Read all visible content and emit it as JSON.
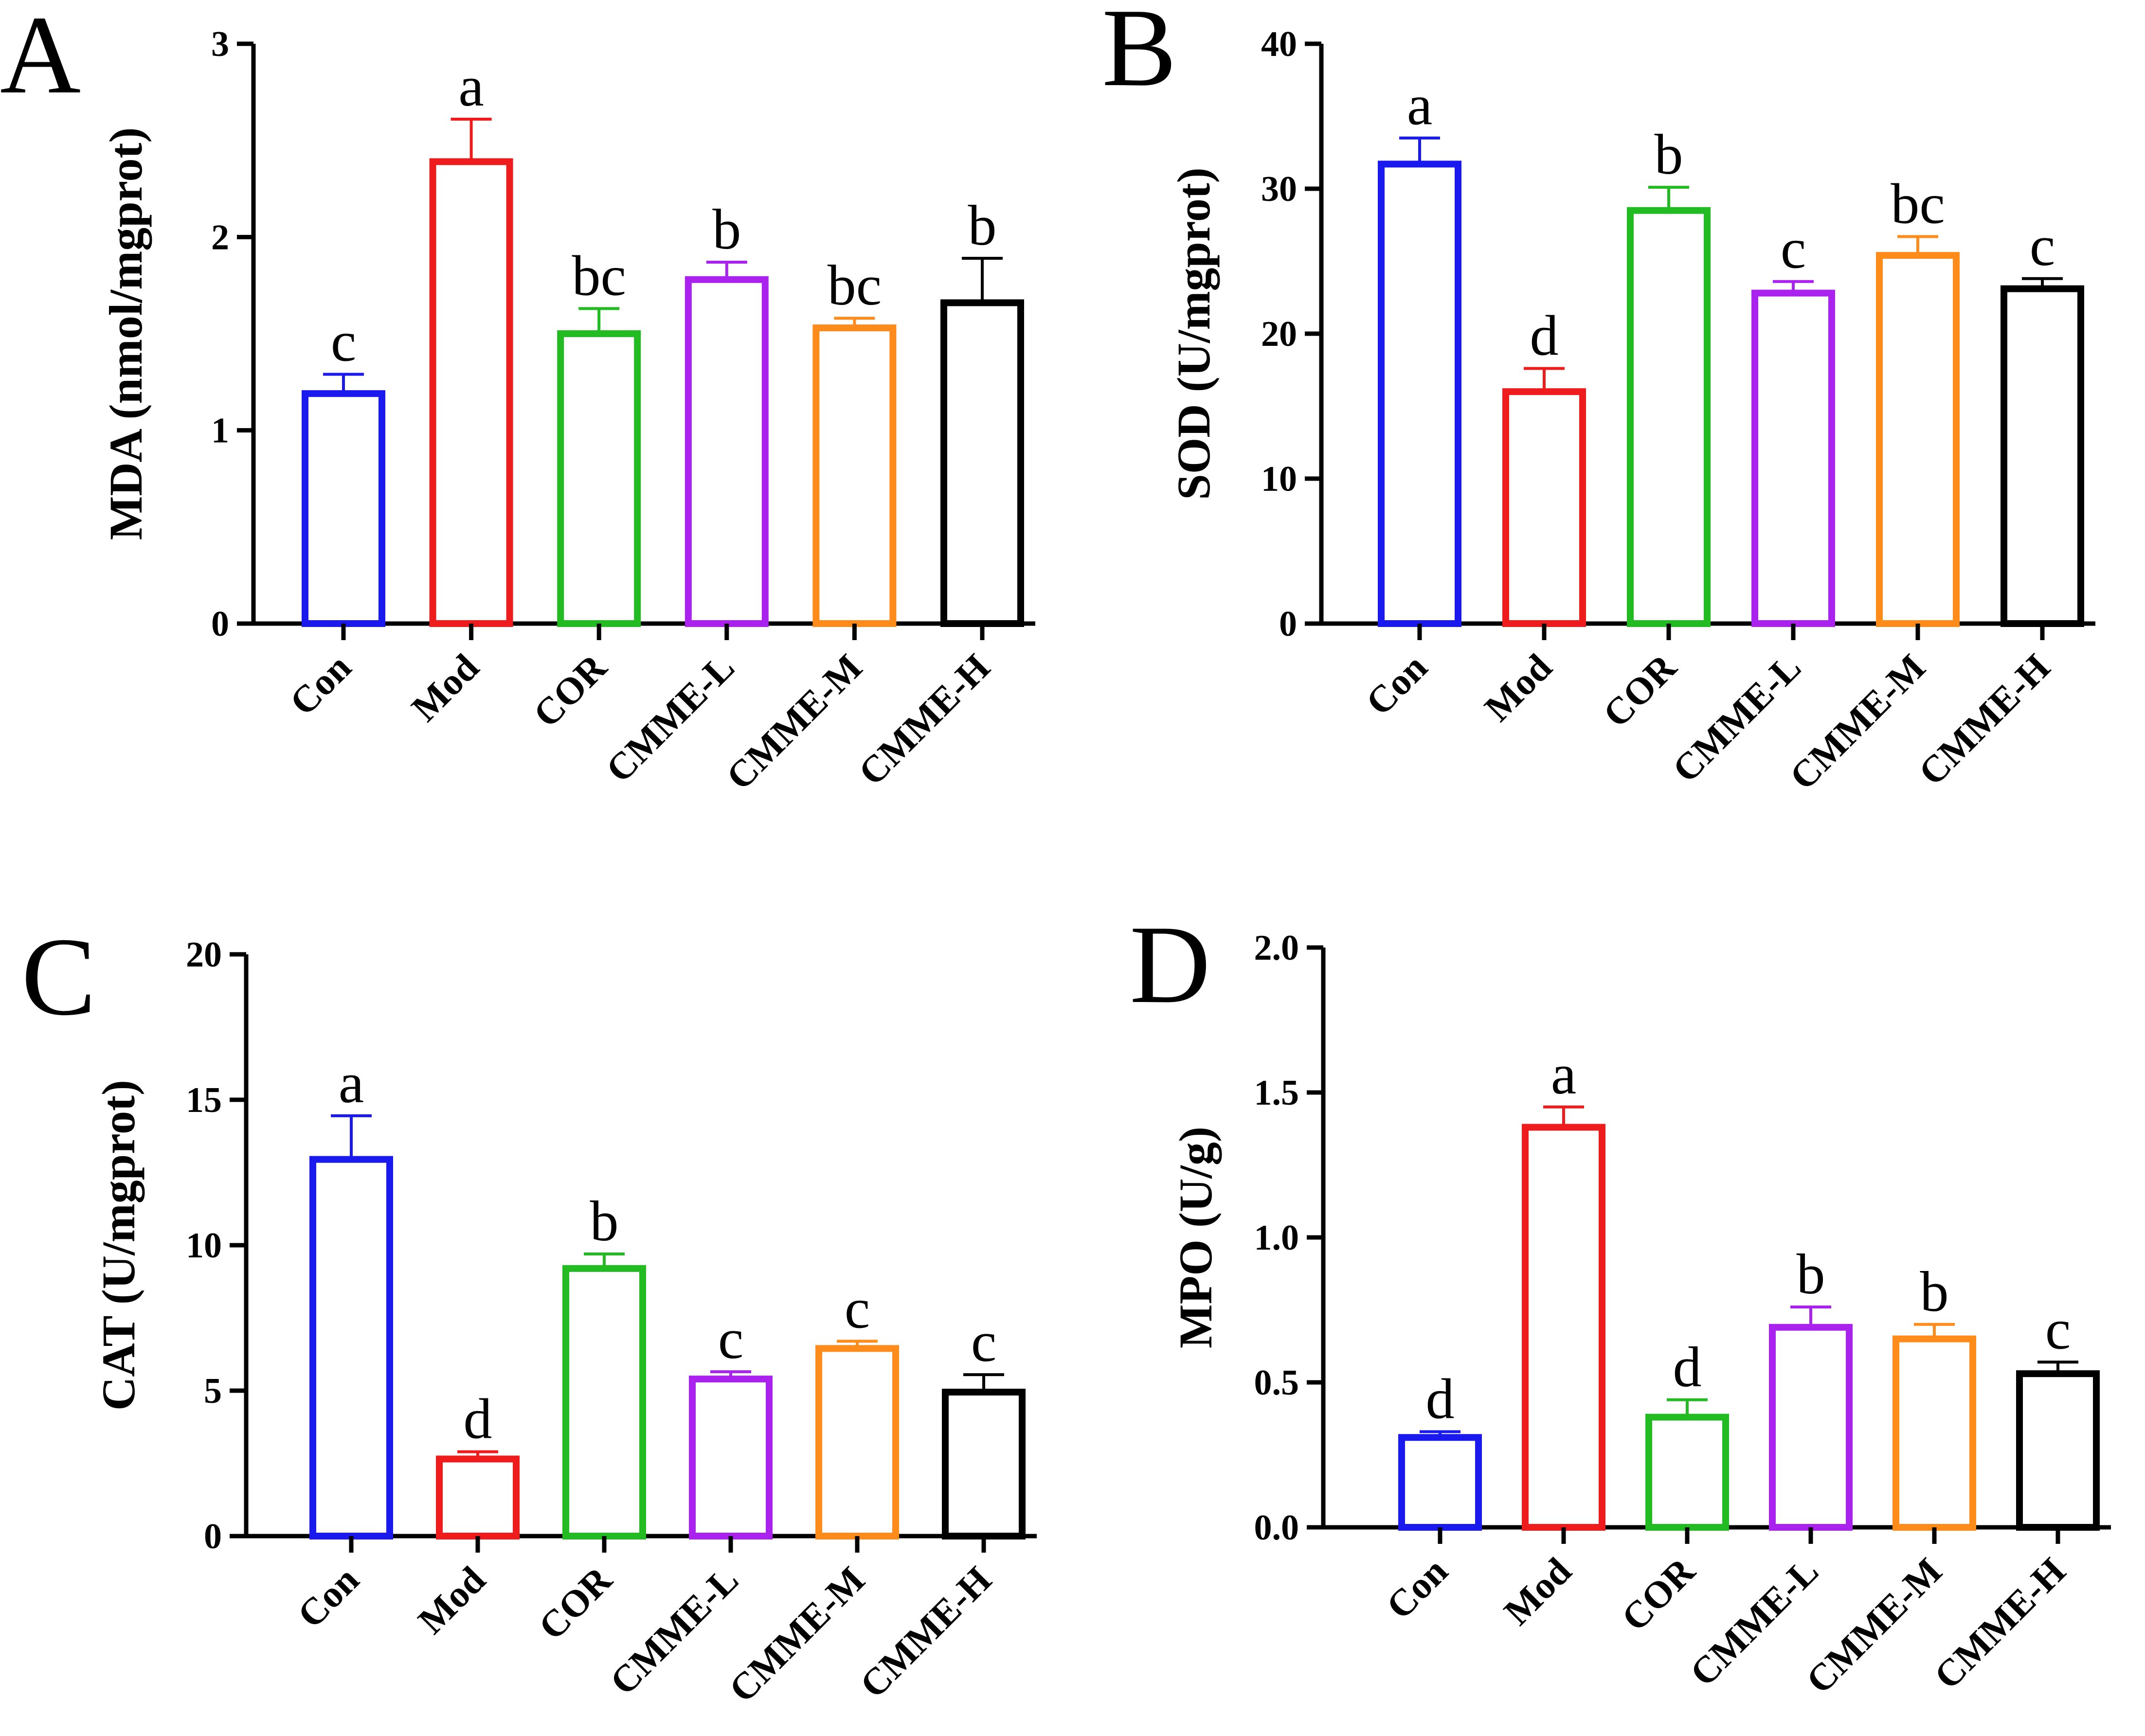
{
  "chart_data": [
    {
      "panel": "A",
      "type": "bar",
      "ylabel": "MDA (nmol/mgprot)",
      "ylim": [
        0,
        3
      ],
      "yticks": [
        0,
        1,
        2,
        3
      ],
      "categories": [
        "Con",
        "Mod",
        "COR",
        "CMME-L",
        "CMME-M",
        "CMME-H"
      ],
      "values": [
        1.19,
        2.39,
        1.5,
        1.78,
        1.53,
        1.66
      ],
      "errors": [
        0.1,
        0.22,
        0.13,
        0.09,
        0.05,
        0.23
      ],
      "significance": [
        "c",
        "a",
        "bc",
        "b",
        "bc",
        "b"
      ]
    },
    {
      "panel": "B",
      "type": "bar",
      "ylabel": "SOD (U/mgprot)",
      "ylim": [
        0,
        40
      ],
      "yticks": [
        0,
        10,
        20,
        30,
        40
      ],
      "categories": [
        "Con",
        "Mod",
        "COR",
        "CMME-L",
        "CMME-M",
        "CMME-H"
      ],
      "values": [
        31.7,
        16.0,
        28.5,
        22.8,
        25.4,
        23.1
      ],
      "errors": [
        1.8,
        1.6,
        1.6,
        0.8,
        1.3,
        0.7
      ],
      "significance": [
        "a",
        "d",
        "b",
        "c",
        "bc",
        "c"
      ]
    },
    {
      "panel": "C",
      "type": "bar",
      "ylabel": "CAT (U/mgprot)",
      "ylim": [
        0,
        20
      ],
      "yticks": [
        0,
        5,
        10,
        15,
        20
      ],
      "categories": [
        "Con",
        "Mod",
        "COR",
        "CMME-L",
        "CMME-M",
        "CMME-H"
      ],
      "values": [
        12.95,
        2.65,
        9.2,
        5.4,
        6.45,
        4.95
      ],
      "errors": [
        1.5,
        0.25,
        0.5,
        0.25,
        0.25,
        0.6
      ],
      "significance": [
        "a",
        "d",
        "b",
        "c",
        "c",
        "c"
      ]
    },
    {
      "panel": "D",
      "type": "bar",
      "ylabel": "MPO (U/g)",
      "ylim": [
        0,
        2.0
      ],
      "yticks": [
        "0.0",
        "0.5",
        "1.0",
        "1.5",
        "2.0"
      ],
      "categories": [
        "Con",
        "Mod",
        "COR",
        "CMME-L",
        "CMME-M",
        "CMME-H"
      ],
      "values": [
        0.31,
        1.38,
        0.38,
        0.69,
        0.65,
        0.53
      ],
      "errors": [
        0.02,
        0.07,
        0.06,
        0.07,
        0.05,
        0.04
      ],
      "significance": [
        "d",
        "a",
        "d",
        "b",
        "b",
        "c"
      ]
    }
  ],
  "colors": [
    "#1a1aee",
    "#ee1c1c",
    "#22bb22",
    "#aa22ee",
    "#ff8c1a",
    "#000000"
  ]
}
